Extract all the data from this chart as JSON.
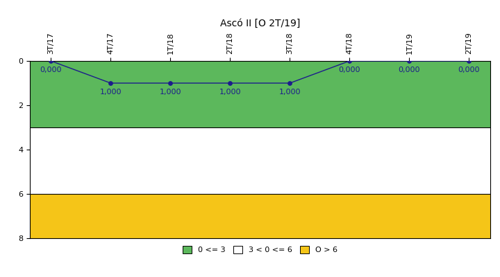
{
  "title": "Ascó II [O 2T/19]",
  "x_labels": [
    "3T/17",
    "4T/17",
    "1T/18",
    "2T/18",
    "3T/18",
    "4T/18",
    "1T/19",
    "2T/19"
  ],
  "y_values": [
    0.0,
    1.0,
    1.0,
    1.0,
    1.0,
    0.0,
    0.0,
    0.0
  ],
  "y_labels_display": [
    "0,000",
    "1,000",
    "1,000",
    "1,000",
    "1,000",
    "0,000",
    "0,000",
    "0,000"
  ],
  "ylim": [
    0,
    8
  ],
  "yticks": [
    0,
    2,
    4,
    6,
    8
  ],
  "band_green": [
    0,
    3
  ],
  "band_white": [
    3,
    6
  ],
  "band_yellow": [
    6,
    8
  ],
  "green_color": "#5cb85c",
  "yellow_color": "#f5c518",
  "white_color": "#ffffff",
  "line_color": "#1c1c8c",
  "marker_color": "#1c1c8c",
  "legend_labels": [
    "0 <= 3",
    "3 < 0 <= 6",
    "O > 6"
  ],
  "background_color": "#ffffff",
  "title_fontsize": 10,
  "tick_fontsize": 8,
  "label_fontsize": 8
}
